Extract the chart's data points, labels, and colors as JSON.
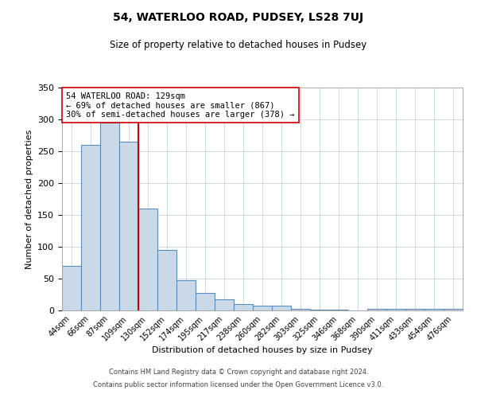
{
  "title": "54, WATERLOO ROAD, PUDSEY, LS28 7UJ",
  "subtitle": "Size of property relative to detached houses in Pudsey",
  "xlabel": "Distribution of detached houses by size in Pudsey",
  "ylabel": "Number of detached properties",
  "bin_labels": [
    "44sqm",
    "66sqm",
    "87sqm",
    "109sqm",
    "130sqm",
    "152sqm",
    "174sqm",
    "195sqm",
    "217sqm",
    "238sqm",
    "260sqm",
    "282sqm",
    "303sqm",
    "325sqm",
    "346sqm",
    "368sqm",
    "390sqm",
    "411sqm",
    "433sqm",
    "454sqm",
    "476sqm"
  ],
  "bar_values": [
    70,
    260,
    295,
    265,
    160,
    95,
    47,
    27,
    18,
    10,
    8,
    7,
    3,
    1,
    1,
    0,
    3,
    2,
    2,
    2,
    3
  ],
  "bar_color": "#c9d9e8",
  "bar_edgecolor": "#5b8db8",
  "vline_color": "#cc0000",
  "annotation_text": "54 WATERLOO ROAD: 129sqm\n← 69% of detached houses are smaller (867)\n30% of semi-detached houses are larger (378) →",
  "annotation_box_color": "#ffffff",
  "annotation_box_edgecolor": "#cc0000",
  "ylim": [
    0,
    350
  ],
  "yticks": [
    0,
    50,
    100,
    150,
    200,
    250,
    300,
    350
  ],
  "footer1": "Contains HM Land Registry data © Crown copyright and database right 2024.",
  "footer2": "Contains public sector information licensed under the Open Government Licence v3.0.",
  "background_color": "#ffffff",
  "grid_color": "#d0d8e8"
}
